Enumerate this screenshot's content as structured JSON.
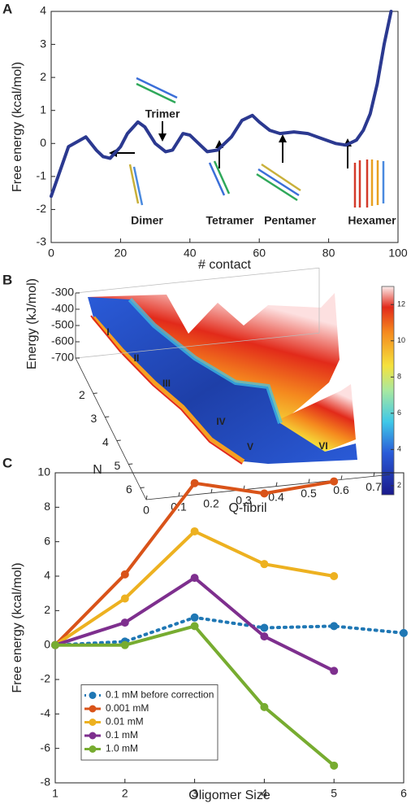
{
  "chart_data": [
    {
      "type": "line",
      "panel": "A",
      "xlabel": "# contact",
      "ylabel": "Free energy (kcal/mol)",
      "x": [
        0,
        5,
        10,
        13,
        15,
        17,
        20,
        22,
        25,
        27,
        30,
        33,
        35,
        38,
        40,
        43,
        45,
        48,
        52,
        55,
        58,
        60,
        63,
        66,
        70,
        74,
        78,
        82,
        85,
        88,
        90,
        92,
        94,
        96,
        98
      ],
      "series": [
        {
          "color": "#2b3990",
          "values": [
            -1.6,
            -0.1,
            0.2,
            -0.2,
            -0.4,
            -0.45,
            -0.1,
            0.3,
            0.65,
            0.5,
            0.0,
            -0.25,
            -0.2,
            0.3,
            0.25,
            -0.05,
            -0.25,
            -0.2,
            0.2,
            0.7,
            0.85,
            0.65,
            0.4,
            0.3,
            0.35,
            0.3,
            0.15,
            0.0,
            -0.05,
            0.1,
            0.4,
            0.9,
            1.8,
            3.0,
            4.0
          ]
        }
      ],
      "xlim": [
        0,
        100
      ],
      "ylim": [
        -3,
        4
      ],
      "xticks": [
        0,
        20,
        40,
        60,
        80,
        100
      ],
      "yticks": [
        -3,
        -2,
        -1,
        0,
        1,
        2,
        3,
        4
      ],
      "annotations": [
        "Trimer",
        "Dimer",
        "Tetramer",
        "Pentamer",
        "Hexamer"
      ]
    },
    {
      "type": "surface",
      "panel": "B",
      "zlabel": "Energy (kJ/mol)",
      "ylabel": "N",
      "xlabel": "Q-fibril",
      "xlim": [
        0,
        0.75
      ],
      "ylim": [
        0.5,
        6.5
      ],
      "zlim": [
        -700,
        -300
      ],
      "xticks": [
        0,
        0.1,
        0.2,
        0.3,
        0.4,
        0.5,
        0.6,
        0.7
      ],
      "yticks": [
        2,
        3,
        4,
        5,
        6
      ],
      "zticks": [
        -300,
        -400,
        -500,
        -600,
        -700
      ],
      "clim": [
        1.5,
        13
      ],
      "cticks": [
        2,
        4,
        6,
        8,
        10,
        12
      ],
      "regions": [
        "I",
        "II",
        "III",
        "IV",
        "V",
        "VI"
      ]
    },
    {
      "type": "line",
      "panel": "C",
      "xlabel": "Oligomer Size",
      "ylabel": "Free energy (kcal/mol)",
      "x": [
        1,
        2,
        3,
        4,
        5,
        6
      ],
      "series": [
        {
          "name": "0.1 mM before correction",
          "color": "#1f77b4",
          "linestyle": "dotted",
          "values": [
            0,
            0.2,
            1.6,
            1.0,
            1.1,
            0.7
          ]
        },
        {
          "name": "0.001 mM",
          "color": "#d95319",
          "values": [
            0,
            4.1,
            9.4,
            8.8,
            9.5,
            null
          ]
        },
        {
          "name": "0.01 mM",
          "color": "#edb120",
          "values": [
            0,
            2.7,
            6.6,
            4.7,
            4.0,
            null
          ]
        },
        {
          "name": "0.1 mM",
          "color": "#7e2f8e",
          "values": [
            0,
            1.3,
            3.9,
            0.5,
            -1.5,
            null
          ]
        },
        {
          "name": "1.0 mM",
          "color": "#77ac30",
          "values": [
            0,
            0,
            1.1,
            -3.6,
            -7.0,
            null
          ]
        }
      ],
      "markers": true,
      "legend": "lower left",
      "xlim": [
        1,
        6
      ],
      "ylim": [
        -8,
        10
      ],
      "xticks": [
        1,
        2,
        3,
        4,
        5,
        6
      ],
      "yticks": [
        -8,
        -6,
        -4,
        -2,
        0,
        2,
        4,
        6,
        8,
        10
      ]
    }
  ]
}
